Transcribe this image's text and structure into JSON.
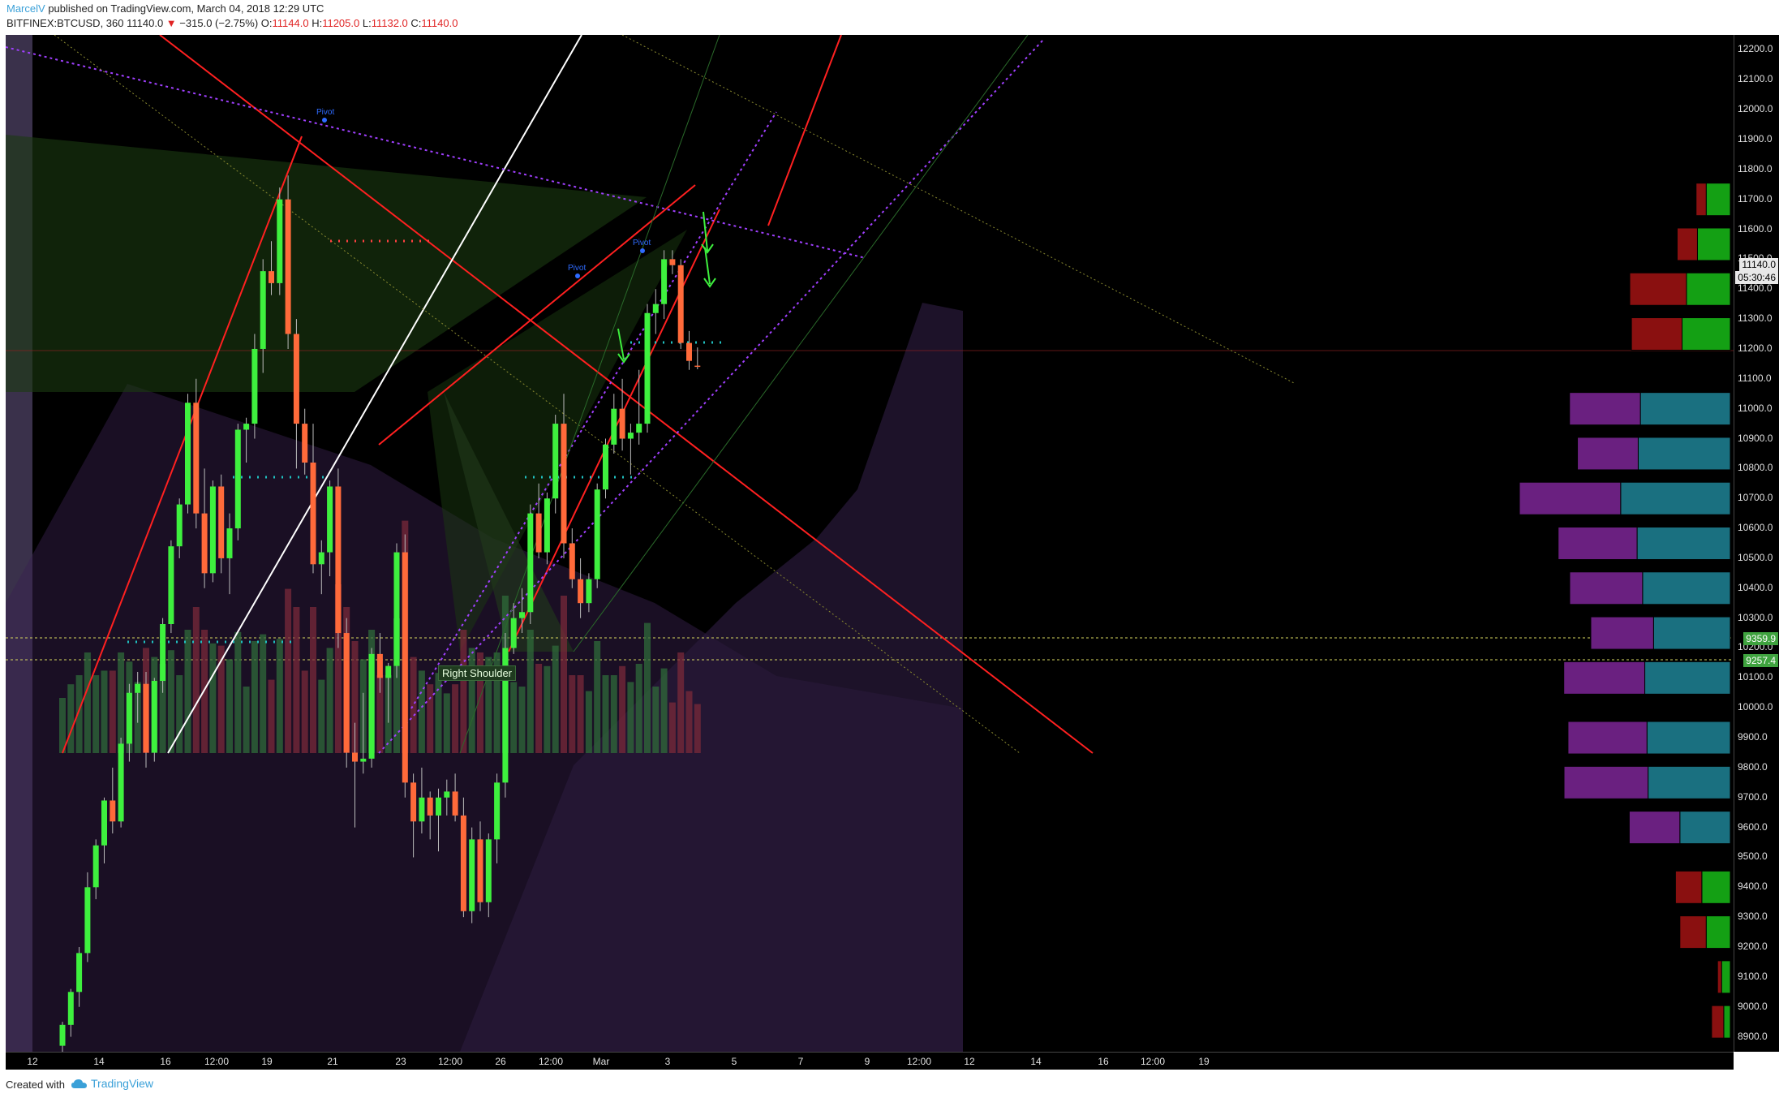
{
  "header": {
    "author": "MarcelV",
    "published_text": "published on TradingView.com, March 04, 2018 12:29 UTC",
    "symbol": "BITFINEX:BTCUSD, 360",
    "last_value": "11140.0",
    "change_arrow": "▼",
    "change": "−315.0 (−2.75%)",
    "open_label": "O:",
    "open": "11144.0",
    "high_label": "H:",
    "high": "11205.0",
    "low_label": "L:",
    "low": "11132.0",
    "close_label": "C:",
    "close": "11140.0"
  },
  "price_axis": {
    "ticks": [
      "12200.0",
      "12100.0",
      "12000.0",
      "11900.0",
      "11800.0",
      "11700.0",
      "11600.0",
      "11500.0",
      "11400.0",
      "11300.0",
      "11200.0",
      "11100.0",
      "11000.0",
      "10900.0",
      "10800.0",
      "10700.0",
      "10600.0",
      "10500.0",
      "10400.0",
      "10300.0",
      "10200.0",
      "10100.0",
      "10000.0",
      "9900.0",
      "9800.0",
      "9700.0",
      "9600.0",
      "9500.0",
      "9400.0",
      "9300.0",
      "9200.0",
      "9100.0",
      "9000.0",
      "8900.0"
    ],
    "last_price_tag": "11140.0",
    "countdown_tag": "05:30:46",
    "level_tag_1": "9359.9",
    "level_tag_2": "9257.4"
  },
  "time_axis": {
    "labels": [
      "12",
      "14",
      "16",
      "12:00",
      "19",
      "21",
      "23",
      "12:00",
      "26",
      "12:00",
      "Mar",
      "3",
      "5",
      "7",
      "9",
      "12:00",
      "12",
      "14",
      "16",
      "12:00",
      "19"
    ]
  },
  "annotations": {
    "right_shoulder": "Right Shoulder",
    "pivot_label": "Pivot"
  },
  "footer": {
    "created_with": "Created with",
    "brand": "TradingView"
  },
  "colors": {
    "bull_candle": "#3ef03e",
    "bear_candle": "#ff6a3a",
    "trend_red": "#ff2020",
    "fib_purple": "#a040ff",
    "cloud_purple": "#2a1a3a",
    "brand_blue": "#3aa0d8"
  },
  "chart_data": {
    "type": "candlestick",
    "symbol": "BITFINEX:BTCUSD",
    "timeframe": "360",
    "y_range": [
      8850,
      12250
    ],
    "last_price": 11140.0,
    "levels": [
      9359.9,
      9257.4
    ],
    "volume_profile_rows": [
      {
        "price": 11700,
        "buy": 0.22,
        "sell": 0.1
      },
      {
        "price": 11550,
        "buy": 0.3,
        "sell": 0.2
      },
      {
        "price": 11400,
        "buy": 0.4,
        "sell": 0.56
      },
      {
        "price": 11250,
        "buy": 0.44,
        "sell": 0.5
      },
      {
        "price": 11000,
        "buy": 0.82,
        "sell": 0.7
      },
      {
        "price": 10850,
        "buy": 0.84,
        "sell": 0.6
      },
      {
        "price": 10700,
        "buy": 1.0,
        "sell": 1.0
      },
      {
        "price": 10550,
        "buy": 0.85,
        "sell": 0.78
      },
      {
        "price": 10400,
        "buy": 0.8,
        "sell": 0.72
      },
      {
        "price": 10250,
        "buy": 0.7,
        "sell": 0.62
      },
      {
        "price": 10100,
        "buy": 0.78,
        "sell": 0.8
      },
      {
        "price": 9900,
        "buy": 0.76,
        "sell": 0.78
      },
      {
        "price": 9750,
        "buy": 0.75,
        "sell": 0.83
      },
      {
        "price": 9600,
        "buy": 0.46,
        "sell": 0.5
      },
      {
        "price": 9400,
        "buy": 0.26,
        "sell": 0.26
      },
      {
        "price": 9250,
        "buy": 0.22,
        "sell": 0.26
      },
      {
        "price": 9100,
        "buy": 0.08,
        "sell": 0.04
      },
      {
        "price": 8950,
        "buy": 0.06,
        "sell": 0.12
      }
    ],
    "candles": [
      {
        "o": 8870,
        "h": 8950,
        "l": 8850,
        "c": 8940
      },
      {
        "o": 8940,
        "h": 9060,
        "l": 8900,
        "c": 9050
      },
      {
        "o": 9050,
        "h": 9200,
        "l": 9000,
        "c": 9180
      },
      {
        "o": 9180,
        "h": 9450,
        "l": 9150,
        "c": 9400
      },
      {
        "o": 9400,
        "h": 9560,
        "l": 9360,
        "c": 9540
      },
      {
        "o": 9540,
        "h": 9700,
        "l": 9480,
        "c": 9690
      },
      {
        "o": 9690,
        "h": 9800,
        "l": 9580,
        "c": 9620
      },
      {
        "o": 9620,
        "h": 9900,
        "l": 9600,
        "c": 9880
      },
      {
        "o": 9880,
        "h": 10080,
        "l": 9820,
        "c": 10050
      },
      {
        "o": 10050,
        "h": 10120,
        "l": 9950,
        "c": 10080
      },
      {
        "o": 10080,
        "h": 10120,
        "l": 9800,
        "c": 9850
      },
      {
        "o": 9850,
        "h": 10100,
        "l": 9820,
        "c": 10090
      },
      {
        "o": 10090,
        "h": 10300,
        "l": 10050,
        "c": 10280
      },
      {
        "o": 10280,
        "h": 10560,
        "l": 10250,
        "c": 10540
      },
      {
        "o": 10540,
        "h": 10700,
        "l": 10500,
        "c": 10680
      },
      {
        "o": 10680,
        "h": 11050,
        "l": 10650,
        "c": 11020
      },
      {
        "o": 11020,
        "h": 11100,
        "l": 10600,
        "c": 10650
      },
      {
        "o": 10650,
        "h": 10800,
        "l": 10400,
        "c": 10450
      },
      {
        "o": 10450,
        "h": 10760,
        "l": 10420,
        "c": 10740
      },
      {
        "o": 10740,
        "h": 10780,
        "l": 10450,
        "c": 10500
      },
      {
        "o": 10500,
        "h": 10650,
        "l": 10380,
        "c": 10600
      },
      {
        "o": 10600,
        "h": 10950,
        "l": 10560,
        "c": 10930
      },
      {
        "o": 10930,
        "h": 10970,
        "l": 10820,
        "c": 10950
      },
      {
        "o": 10950,
        "h": 11250,
        "l": 10900,
        "c": 11200
      },
      {
        "o": 11200,
        "h": 11500,
        "l": 11120,
        "c": 11460
      },
      {
        "o": 11460,
        "h": 11560,
        "l": 11380,
        "c": 11420
      },
      {
        "o": 11420,
        "h": 11740,
        "l": 11380,
        "c": 11700
      },
      {
        "o": 11700,
        "h": 11780,
        "l": 11200,
        "c": 11250
      },
      {
        "o": 11250,
        "h": 11300,
        "l": 10800,
        "c": 10950
      },
      {
        "o": 10950,
        "h": 11000,
        "l": 10780,
        "c": 10820
      },
      {
        "o": 10820,
        "h": 10950,
        "l": 10450,
        "c": 10480
      },
      {
        "o": 10480,
        "h": 10560,
        "l": 10380,
        "c": 10520
      },
      {
        "o": 10520,
        "h": 10760,
        "l": 10440,
        "c": 10740
      },
      {
        "o": 10740,
        "h": 10800,
        "l": 10200,
        "c": 10250
      },
      {
        "o": 10250,
        "h": 10300,
        "l": 9800,
        "c": 9850
      },
      {
        "o": 9850,
        "h": 9950,
        "l": 9600,
        "c": 9820
      },
      {
        "o": 9820,
        "h": 10050,
        "l": 9780,
        "c": 9830
      },
      {
        "o": 9830,
        "h": 10200,
        "l": 9800,
        "c": 10180
      },
      {
        "o": 10180,
        "h": 10250,
        "l": 10050,
        "c": 10100
      },
      {
        "o": 10100,
        "h": 10150,
        "l": 9950,
        "c": 10140
      },
      {
        "o": 10140,
        "h": 10550,
        "l": 10100,
        "c": 10520
      },
      {
        "o": 10520,
        "h": 10580,
        "l": 9700,
        "c": 9750
      },
      {
        "o": 9750,
        "h": 9780,
        "l": 9500,
        "c": 9620
      },
      {
        "o": 9620,
        "h": 9800,
        "l": 9580,
        "c": 9700
      },
      {
        "o": 9700,
        "h": 9720,
        "l": 9560,
        "c": 9640
      },
      {
        "o": 9640,
        "h": 9730,
        "l": 9520,
        "c": 9700
      },
      {
        "o": 9700,
        "h": 9760,
        "l": 9640,
        "c": 9720
      },
      {
        "o": 9720,
        "h": 9780,
        "l": 9620,
        "c": 9640
      },
      {
        "o": 9640,
        "h": 9700,
        "l": 9300,
        "c": 9320
      },
      {
        "o": 9320,
        "h": 9600,
        "l": 9280,
        "c": 9560
      },
      {
        "o": 9560,
        "h": 9620,
        "l": 9320,
        "c": 9350
      },
      {
        "o": 9350,
        "h": 9580,
        "l": 9300,
        "c": 9560
      },
      {
        "o": 9560,
        "h": 9780,
        "l": 9480,
        "c": 9750
      },
      {
        "o": 9750,
        "h": 10250,
        "l": 9700,
        "c": 10200
      },
      {
        "o": 10200,
        "h": 10350,
        "l": 10180,
        "c": 10300
      },
      {
        "o": 10300,
        "h": 10400,
        "l": 10250,
        "c": 10320
      },
      {
        "o": 10320,
        "h": 10680,
        "l": 10280,
        "c": 10650
      },
      {
        "o": 10650,
        "h": 10750,
        "l": 10500,
        "c": 10520
      },
      {
        "o": 10520,
        "h": 10720,
        "l": 10480,
        "c": 10700
      },
      {
        "o": 10700,
        "h": 10980,
        "l": 10650,
        "c": 10950
      },
      {
        "o": 10950,
        "h": 11050,
        "l": 10500,
        "c": 10550
      },
      {
        "o": 10550,
        "h": 10600,
        "l": 10400,
        "c": 10430
      },
      {
        "o": 10430,
        "h": 10500,
        "l": 10300,
        "c": 10350
      },
      {
        "o": 10350,
        "h": 10450,
        "l": 10320,
        "c": 10430
      },
      {
        "o": 10430,
        "h": 10750,
        "l": 10400,
        "c": 10730
      },
      {
        "o": 10730,
        "h": 10900,
        "l": 10700,
        "c": 10880
      },
      {
        "o": 10880,
        "h": 11050,
        "l": 10850,
        "c": 11000
      },
      {
        "o": 11000,
        "h": 11100,
        "l": 10860,
        "c": 10900
      },
      {
        "o": 10900,
        "h": 10950,
        "l": 10780,
        "c": 10920
      },
      {
        "o": 10920,
        "h": 11130,
        "l": 10880,
        "c": 10950
      },
      {
        "o": 10950,
        "h": 11350,
        "l": 10920,
        "c": 11320
      },
      {
        "o": 11320,
        "h": 11400,
        "l": 11250,
        "c": 11350
      },
      {
        "o": 11350,
        "h": 11530,
        "l": 11300,
        "c": 11500
      },
      {
        "o": 11500,
        "h": 11530,
        "l": 11450,
        "c": 11480
      },
      {
        "o": 11480,
        "h": 11500,
        "l": 11200,
        "c": 11220
      },
      {
        "o": 11220,
        "h": 11260,
        "l": 11130,
        "c": 11160
      },
      {
        "o": 11144,
        "h": 11205,
        "l": 11132,
        "c": 11140
      }
    ]
  }
}
